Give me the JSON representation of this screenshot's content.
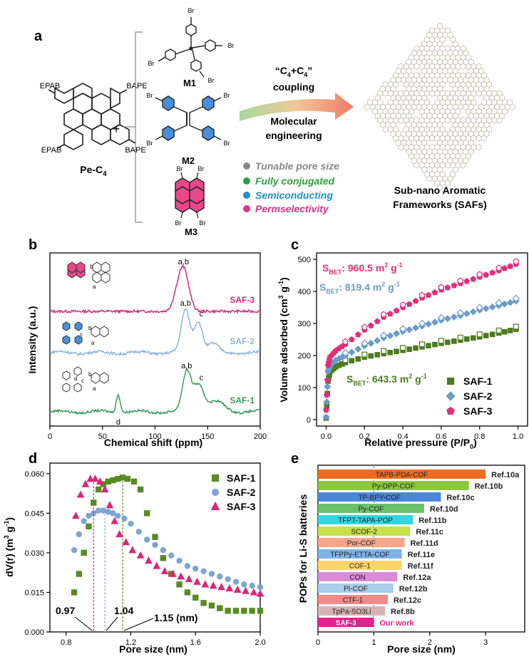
{
  "panels": {
    "a": "a",
    "b": "b",
    "c": "c",
    "d": "d",
    "e": "e"
  },
  "panel_a": {
    "pe_labels": {
      "tl": "EPAB",
      "tr": "BAPE",
      "bl": "EPAB",
      "br": "BAPE",
      "name": "Pe-C",
      "name_sub": "4"
    },
    "plus": "+",
    "monomers": [
      {
        "name": "M1"
      },
      {
        "name": "M2"
      },
      {
        "name": "M3"
      }
    ],
    "br": "Br",
    "pos_a": "a",
    "pos_b": "b",
    "arrow_text": {
      "line1_pre": "“C",
      "line1_sub1": "4",
      "line1_mid": "+C",
      "line1_sub2": "4",
      "line1_post": "”",
      "line2": "coupling",
      "line3": "Molecular",
      "line4": "engineering"
    },
    "features": [
      {
        "text": "Tunable pore size",
        "color": "#888888"
      },
      {
        "text": "Fully conjugated",
        "color": "#2e9e3e"
      },
      {
        "text": "Semiconducting",
        "color": "#1f8fc8"
      },
      {
        "text": "Permselectivity",
        "color": "#e0308a"
      }
    ],
    "product": {
      "line1": "Sub-nano Aromatic",
      "line2": "Frameworks (SAFs)"
    }
  },
  "chart_data": [
    {
      "panel": "b",
      "type": "line",
      "xlabel": "Chemical shift (ppm)",
      "ylabel": "Intensity (a.u.)",
      "xlim": [
        0,
        200
      ],
      "xticks": [
        0,
        50,
        100,
        150,
        200
      ],
      "series": [
        {
          "name": "SAF-3",
          "color": "#d6287a",
          "baseline": 30.0,
          "peaks": [
            [
              127,
              1.0,
              5
            ],
            [
              120,
              0.2,
              4
            ]
          ]
        },
        {
          "name": "SAF-2",
          "color": "#8fb3d6",
          "baseline": 1.5,
          "peaks": [
            [
              129,
              1.0,
              4
            ],
            [
              141,
              0.75,
              4
            ],
            [
              155,
              0.2,
              5
            ]
          ]
        },
        {
          "name": "SAF-1",
          "color": "#3c9a5a",
          "baseline": 0.5,
          "peaks": [
            [
              65,
              0.45,
              2
            ],
            [
              130,
              1.0,
              4
            ],
            [
              141,
              0.7,
              5
            ],
            [
              158,
              0.25,
              8
            ]
          ]
        }
      ],
      "annotations": [
        {
          "text": "a,b",
          "series": "SAF-3"
        },
        {
          "text": "a,b",
          "series": "SAF-2"
        },
        {
          "text": "c",
          "series": "SAF-2"
        },
        {
          "text": "a,b",
          "series": "SAF-1"
        },
        {
          "text": "c",
          "series": "SAF-1"
        },
        {
          "text": "d",
          "series": "SAF-1"
        }
      ]
    },
    {
      "panel": "c",
      "type": "scatter",
      "xlabel": "Relative pressure (P/P",
      "xlabel_sub": "0",
      "xlabel_post": ")",
      "ylabel": "Volume adsorbed (cm",
      "ylabel_sup": "3",
      "ylabel_post": " g",
      "ylabel_sup2": "-1",
      "ylabel_end": ")",
      "xlim": [
        -0.05,
        1.05
      ],
      "ylim": [
        -20,
        520
      ],
      "xticks": [
        0.0,
        0.2,
        0.4,
        0.6,
        0.8,
        1.0
      ],
      "yticks": [
        0,
        100,
        200,
        300,
        400,
        500
      ],
      "series": [
        {
          "name": "SAF-1",
          "color": "#4d7a1f",
          "marker": "square",
          "bet": "643.3",
          "x": [
            0.0,
            0.01,
            0.02,
            0.05,
            0.1,
            0.2,
            0.3,
            0.4,
            0.5,
            0.6,
            0.7,
            0.8,
            0.9,
            0.99
          ],
          "y": [
            5,
            120,
            150,
            165,
            178,
            195,
            206,
            216,
            227,
            238,
            248,
            258,
            270,
            282
          ]
        },
        {
          "name": "SAF-2",
          "color": "#6a9cc8",
          "marker": "diamond",
          "bet": "819.4",
          "x": [
            0.0,
            0.01,
            0.02,
            0.05,
            0.1,
            0.2,
            0.3,
            0.4,
            0.5,
            0.6,
            0.7,
            0.8,
            0.9,
            0.99
          ],
          "y": [
            8,
            150,
            170,
            185,
            200,
            230,
            255,
            275,
            292,
            310,
            325,
            342,
            356,
            370
          ]
        },
        {
          "name": "SAF-3",
          "color": "#e0307a",
          "marker": "pentagon",
          "bet": "960.5",
          "x": [
            0.0,
            0.01,
            0.02,
            0.05,
            0.1,
            0.2,
            0.3,
            0.4,
            0.5,
            0.6,
            0.7,
            0.8,
            0.9,
            0.99
          ],
          "y": [
            30,
            170,
            195,
            215,
            235,
            280,
            320,
            350,
            380,
            405,
            425,
            445,
            465,
            485
          ]
        }
      ],
      "bet_label": {
        "s": "S",
        "sub": "BET",
        "post": ": ",
        "unit": " m",
        "sup": "2",
        "unit2": " g",
        "sup2": "-1"
      }
    },
    {
      "panel": "d",
      "type": "scatter",
      "xlabel": "Pore size (nm)",
      "ylabel": "dV(r) (m",
      "ylabel_sup": "3",
      "ylabel_post": " g",
      "ylabel_sup2": "-1",
      "ylabel_end": ")",
      "xlim": [
        0.7,
        2.0
      ],
      "ylim": [
        0,
        0.064
      ],
      "xticks": [
        0.8,
        1.2,
        1.6,
        2.0
      ],
      "yticks": [
        0.0,
        0.015,
        0.03,
        0.045,
        0.06
      ],
      "series": [
        {
          "name": "SAF-1",
          "color": "#5a8a22",
          "marker": "square",
          "peak": 1.15,
          "x": [
            0.85,
            0.88,
            0.91,
            0.94,
            0.97,
            1.0,
            1.03,
            1.06,
            1.09,
            1.12,
            1.15,
            1.18,
            1.22,
            1.26,
            1.3,
            1.35,
            1.4,
            1.45,
            1.5,
            1.55,
            1.6,
            1.65,
            1.7,
            1.75,
            1.8,
            1.85,
            1.9,
            1.95,
            2.0
          ],
          "y": [
            0.015,
            0.022,
            0.03,
            0.04,
            0.049,
            0.054,
            0.056,
            0.057,
            0.0575,
            0.058,
            0.0585,
            0.058,
            0.057,
            0.054,
            0.045,
            0.036,
            0.028,
            0.022,
            0.018,
            0.015,
            0.013,
            0.011,
            0.01,
            0.009,
            0.008,
            0.008,
            0.008,
            0.008,
            0.008
          ]
        },
        {
          "name": "SAF-2",
          "color": "#7ba7d0",
          "marker": "circle",
          "peak": 1.04,
          "x": [
            0.85,
            0.88,
            0.91,
            0.94,
            0.97,
            1.0,
            1.03,
            1.06,
            1.09,
            1.12,
            1.16,
            1.2,
            1.25,
            1.3,
            1.35,
            1.4,
            1.45,
            1.5,
            1.55,
            1.6,
            1.65,
            1.7,
            1.75,
            1.8,
            1.85,
            1.9,
            1.95,
            2.0
          ],
          "y": [
            0.031,
            0.037,
            0.042,
            0.044,
            0.045,
            0.046,
            0.046,
            0.0455,
            0.045,
            0.044,
            0.043,
            0.041,
            0.038,
            0.035,
            0.033,
            0.031,
            0.029,
            0.027,
            0.025,
            0.024,
            0.023,
            0.022,
            0.021,
            0.02,
            0.019,
            0.018,
            0.0175,
            0.017
          ]
        },
        {
          "name": "SAF-3",
          "color": "#d6287a",
          "marker": "triangle",
          "peak": 0.97,
          "x": [
            0.86,
            0.89,
            0.92,
            0.95,
            0.98,
            1.01,
            1.04,
            1.07,
            1.1,
            1.13,
            1.17,
            1.21,
            1.26,
            1.31,
            1.36,
            1.41,
            1.46,
            1.51,
            1.56,
            1.61,
            1.66,
            1.71,
            1.76,
            1.81,
            1.86,
            1.91,
            1.96,
            2.0
          ],
          "y": [
            0.044,
            0.052,
            0.056,
            0.058,
            0.058,
            0.057,
            0.054,
            0.048,
            0.042,
            0.037,
            0.034,
            0.031,
            0.029,
            0.027,
            0.025,
            0.023,
            0.022,
            0.021,
            0.02,
            0.019,
            0.018,
            0.0175,
            0.017,
            0.0165,
            0.016,
            0.0155,
            0.015,
            0.0145
          ]
        }
      ],
      "annotations": [
        {
          "text": "0.97"
        },
        {
          "text": "1.04"
        },
        {
          "text": "1.15 (nm)"
        }
      ]
    },
    {
      "panel": "e",
      "type": "bar",
      "xlabel": "Pore size (nm)",
      "ylabel": "POPs for Li-S batteries",
      "xlim": [
        0,
        3.7
      ],
      "xticks": [
        0,
        1,
        2,
        3
      ],
      "refline": 1.0,
      "categories": [
        "TAPB-PDA-COF",
        "Py-DPP-COF",
        "TP-BPY-COF",
        "Py-COF",
        "TFPT-TAPA-POP",
        "SCOF-2",
        "Por-COF",
        "TFPPy-ETTA-COF",
        "COF-1",
        "CON",
        "PI-COF",
        "CTF-1",
        "TpPa-SO3Li",
        "SAF-3"
      ],
      "values": [
        3.0,
        2.7,
        2.2,
        1.9,
        1.7,
        1.65,
        1.55,
        1.5,
        1.5,
        1.42,
        1.35,
        1.25,
        1.2,
        1.0
      ],
      "refs": [
        "Ref.10a",
        "Ref.10b",
        "Ref.10c",
        "Ref.10d",
        "Ref.11b",
        "Ref.11c",
        "Ref.11d",
        "Ref.11e",
        "Ref.11f",
        "Ref.12a",
        "Ref.12b",
        "Ref.12c",
        "Ref.8b",
        "Our work"
      ],
      "colors": [
        "#ef6c1f",
        "#8cc63f",
        "#4a86d9",
        "#6cc26b",
        "#2fd8e0",
        "#c8e04a",
        "#f6a58a",
        "#7fb3e6",
        "#ffd56b",
        "#d98bd9",
        "#a9cdea",
        "#f28a8a",
        "#d9b3b3",
        "#e81e8c"
      ]
    }
  ]
}
